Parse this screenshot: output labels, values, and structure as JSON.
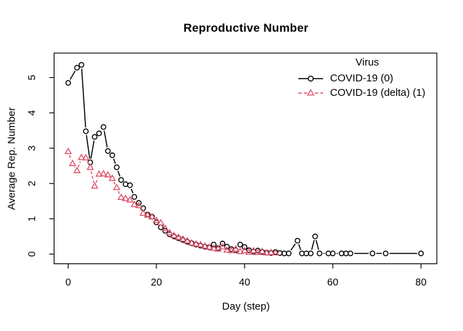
{
  "window": {
    "background": "#ffffff",
    "foreground": "#000000"
  },
  "chart_data": {
    "type": "line",
    "title": "Reproductive Number",
    "xlabel": "Day (step)",
    "ylabel": "Average Rep. Number",
    "legend_title": "Virus",
    "legend_position": "top-right",
    "legend_box": false,
    "grid": false,
    "x_ticks": [
      0,
      20,
      40,
      60,
      80
    ],
    "y_ticks": [
      0,
      1,
      2,
      3,
      4,
      5
    ],
    "xlim": [
      -3,
      83
    ],
    "ylim": [
      -0.15,
      5.6
    ],
    "marker_style": "open",
    "series": [
      {
        "name": "COVID-19 (0)",
        "color": "#000000",
        "marker": "circle",
        "line_style": "solid",
        "points": [
          [
            0,
            4.85
          ],
          [
            2,
            5.28
          ],
          [
            3,
            5.36
          ],
          [
            4,
            3.48
          ],
          [
            5,
            2.6
          ],
          [
            6,
            3.32
          ],
          [
            7,
            3.42
          ],
          [
            8,
            3.6
          ],
          [
            9,
            2.92
          ],
          [
            10,
            2.8
          ],
          [
            11,
            2.46
          ],
          [
            12,
            2.1
          ],
          [
            13,
            1.98
          ],
          [
            14,
            1.95
          ],
          [
            15,
            1.62
          ],
          [
            16,
            1.45
          ],
          [
            17,
            1.3
          ],
          [
            18,
            1.12
          ],
          [
            19,
            1.06
          ],
          [
            20,
            0.9
          ],
          [
            21,
            0.76
          ],
          [
            22,
            0.66
          ],
          [
            23,
            0.56
          ],
          [
            24,
            0.5
          ],
          [
            25,
            0.45
          ],
          [
            26,
            0.4
          ],
          [
            27,
            0.35
          ],
          [
            28,
            0.31
          ],
          [
            29,
            0.27
          ],
          [
            30,
            0.24
          ],
          [
            31,
            0.21
          ],
          [
            32,
            0.19
          ],
          [
            33,
            0.27
          ],
          [
            34,
            0.17
          ],
          [
            35,
            0.3
          ],
          [
            36,
            0.21
          ],
          [
            37,
            0.14
          ],
          [
            38,
            0.11
          ],
          [
            39,
            0.27
          ],
          [
            40,
            0.2
          ],
          [
            41,
            0.11
          ],
          [
            42,
            0.07
          ],
          [
            43,
            0.1
          ],
          [
            44,
            0.06
          ],
          [
            45,
            0.04
          ],
          [
            46,
            0.03
          ],
          [
            47,
            0.06
          ],
          [
            48,
            0.03
          ],
          [
            49,
            0.02
          ],
          [
            50,
            0.02
          ],
          [
            52,
            0.38
          ],
          [
            53,
            0.02
          ],
          [
            54,
            0.02
          ],
          [
            55,
            0.02
          ],
          [
            56,
            0.5
          ],
          [
            57,
            0.02
          ],
          [
            59,
            0.02
          ],
          [
            60,
            0.02
          ],
          [
            62,
            0.02
          ],
          [
            63,
            0.02
          ],
          [
            64,
            0.02
          ],
          [
            69,
            0.02
          ],
          [
            72,
            0.02
          ],
          [
            80,
            0.02
          ]
        ]
      },
      {
        "name": "COVID-19 (delta) (1)",
        "color": "#DF536B",
        "marker": "triangle",
        "line_style": "dashed",
        "points": [
          [
            0,
            2.9
          ],
          [
            1,
            2.56
          ],
          [
            2,
            2.36
          ],
          [
            3,
            2.73
          ],
          [
            4,
            2.72
          ],
          [
            5,
            2.45
          ],
          [
            6,
            1.92
          ],
          [
            7,
            2.26
          ],
          [
            8,
            2.27
          ],
          [
            9,
            2.24
          ],
          [
            10,
            2.14
          ],
          [
            11,
            1.88
          ],
          [
            12,
            1.6
          ],
          [
            13,
            1.57
          ],
          [
            14,
            1.53
          ],
          [
            15,
            1.4
          ],
          [
            16,
            1.37
          ],
          [
            17,
            1.15
          ],
          [
            18,
            1.1
          ],
          [
            19,
            1.05
          ],
          [
            20,
            0.95
          ],
          [
            21,
            0.88
          ],
          [
            22,
            0.72
          ],
          [
            23,
            0.6
          ],
          [
            24,
            0.52
          ],
          [
            25,
            0.47
          ],
          [
            26,
            0.42
          ],
          [
            27,
            0.37
          ],
          [
            28,
            0.31
          ],
          [
            29,
            0.28
          ],
          [
            30,
            0.26
          ],
          [
            31,
            0.22
          ],
          [
            32,
            0.19
          ],
          [
            33,
            0.16
          ],
          [
            34,
            0.14
          ],
          [
            35,
            0.2
          ],
          [
            36,
            0.11
          ],
          [
            37,
            0.09
          ],
          [
            38,
            0.14
          ],
          [
            39,
            0.07
          ],
          [
            40,
            0.09
          ],
          [
            41,
            0.05
          ],
          [
            42,
            0.09
          ],
          [
            43,
            0.04
          ],
          [
            44,
            0.07
          ],
          [
            45,
            0.03
          ],
          [
            46,
            0.04
          ],
          [
            47,
            0.03
          ]
        ]
      }
    ]
  }
}
